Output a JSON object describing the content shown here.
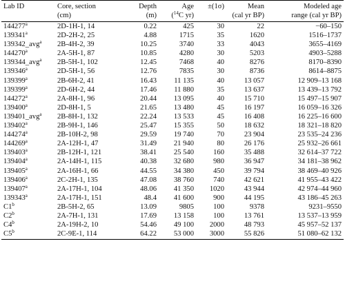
{
  "header": {
    "row1": [
      "Lab ID",
      "Core, section",
      "Depth",
      "Age",
      "±(1σ)",
      "Mean",
      "Modeled age"
    ],
    "row2": [
      "",
      "(cm)",
      "(m)",
      "(14C yr)",
      "",
      "(cal yr BP)",
      "range (cal yr BP)"
    ],
    "age_unit_pre": "(",
    "age_unit_sup": "14",
    "age_unit_post": "C yr)"
  },
  "rows": [
    {
      "id": "144277",
      "sup": "a",
      "core": "2D-1H-1, 14",
      "depth": "0.22",
      "age": "425",
      "err": "30",
      "mean": "22",
      "range": "−60–150"
    },
    {
      "id": "139341",
      "sup": "a",
      "core": "2D-2H-2, 25",
      "depth": "4.88",
      "age": "1715",
      "err": "35",
      "mean": "1620",
      "range": "1516–1737"
    },
    {
      "id": "139342_avg",
      "sup": "a",
      "core": "2B-4H-2, 39",
      "depth": "10.25",
      "age": "3740",
      "err": "33",
      "mean": "4043",
      "range": "3655–4169"
    },
    {
      "id": "144270",
      "sup": "a",
      "core": "2A-5H-1, 87",
      "depth": "10.85",
      "age": "4280",
      "err": "30",
      "mean": "5203",
      "range": "4903–5288"
    },
    {
      "id": "139344_avg",
      "sup": "a",
      "core": "2B-5H-1, 102",
      "depth": "12.45",
      "age": "7468",
      "err": "40",
      "mean": "8276",
      "range": "8170–8390"
    },
    {
      "id": "139346",
      "sup": "a",
      "core": "2D-5H-1, 56",
      "depth": "12.76",
      "age": "7835",
      "err": "30",
      "mean": "8736",
      "range": "8614–8875"
    },
    {
      "id": "139399",
      "sup": "a",
      "core": "2B-6H-2, 41",
      "depth": "16.43",
      "age": "11 135",
      "err": "40",
      "mean": "13 057",
      "range": "12 909–13 168"
    },
    {
      "id": "139399",
      "sup": "a",
      "core": "2D-6H-2, 44",
      "depth": "17.46",
      "age": "11 880",
      "err": "35",
      "mean": "13 637",
      "range": "13 439–13 792"
    },
    {
      "id": "144272",
      "sup": "a",
      "core": "2A-8H-1, 96",
      "depth": "20.44",
      "age": "13 095",
      "err": "40",
      "mean": "15 710",
      "range": "15 497–15 907"
    },
    {
      "id": "139400",
      "sup": "a",
      "core": "2D-8H-1, 5",
      "depth": "21.65",
      "age": "13 480",
      "err": "45",
      "mean": "16 197",
      "range": "16 059–16 326"
    },
    {
      "id": "139401_avg",
      "sup": "a",
      "core": "2B-8H-1, 132",
      "depth": "22.24",
      "age": "13 533",
      "err": "45",
      "mean": "16 408",
      "range": "16 225–16 600"
    },
    {
      "id": "139402",
      "sup": "a",
      "core": "2B-9H-1, 146",
      "depth": "25.47",
      "age": "15 355",
      "err": "50",
      "mean": "18 632",
      "range": "18 321–18 820"
    },
    {
      "id": "144274",
      "sup": "a",
      "core": "2B-10H-2, 98",
      "depth": "29.59",
      "age": "19 740",
      "err": "70",
      "mean": "23 904",
      "range": "23 535–24 236"
    },
    {
      "id": "144269",
      "sup": "a",
      "core": "2A-12H-1, 47",
      "depth": "31.49",
      "age": "21 940",
      "err": "80",
      "mean": "26 176",
      "range": "25 932–26 661"
    },
    {
      "id": "139403",
      "sup": "a",
      "core": "2B-12H-1, 121",
      "depth": "38.41",
      "age": "25 540",
      "err": "160",
      "mean": "35 488",
      "range": "32 614–37 722"
    },
    {
      "id": "139404",
      "sup": "a",
      "core": "2A-14H-1, 115",
      "depth": "40.38",
      "age": "32 680",
      "err": "980",
      "mean": "36 947",
      "range": "34 181–38 962"
    },
    {
      "id": "139405",
      "sup": "a",
      "core": "2A-16H-1, 66",
      "depth": "44.55",
      "age": "34 380",
      "err": "450",
      "mean": "39 794",
      "range": "38 469–40 926"
    },
    {
      "id": "139406",
      "sup": "a",
      "core": "2C-2H-1, 135",
      "depth": "47.08",
      "age": "38 760",
      "err": "740",
      "mean": "42 621",
      "range": "41 955–43 422"
    },
    {
      "id": "139407",
      "sup": "a",
      "core": "2A-17H-1, 104",
      "depth": "48.06",
      "age": "41 350",
      "err": "1020",
      "mean": "43 944",
      "range": "42 974–44 960"
    },
    {
      "id": "139343",
      "sup": "a",
      "core": "2A-17H-1, 151",
      "depth": "48.4",
      "age": "41 600",
      "err": "900",
      "mean": "44 195",
      "range": "43 186–45 263"
    },
    {
      "id": "C1",
      "sup": "b",
      "core": "2B-5H-2, 65",
      "depth": "13.09",
      "age": "9805",
      "err": "100",
      "mean": "9378",
      "range": "9231–9550"
    },
    {
      "id": "C2",
      "sup": "b",
      "core": "2A-7H-1, 131",
      "depth": "17.69",
      "age": "13 158",
      "err": "100",
      "mean": "13 761",
      "range": "13 537–13 959"
    },
    {
      "id": "C4",
      "sup": "b",
      "core": "2A-19H-2, 10",
      "depth": "54.46",
      "age": "49 100",
      "err": "2000",
      "mean": "48 793",
      "range": "45 957–52 137"
    },
    {
      "id": "C5",
      "sup": "b",
      "core": "2C-9E-1, 114",
      "depth": "64.22",
      "age": "53 000",
      "err": "3000",
      "mean": "55 826",
      "range": "51 080–62 132"
    }
  ]
}
